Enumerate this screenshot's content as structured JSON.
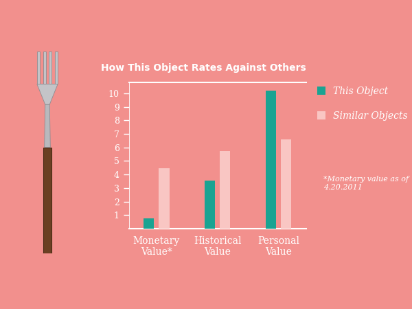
{
  "chart_data": {
    "type": "bar",
    "title": "How This Object Rates Against Others",
    "categories": [
      "Monetary Value*",
      "Historical Value",
      "Personal Value"
    ],
    "series": [
      {
        "name": "This Object",
        "color": "#1aa392",
        "values": [
          0.75,
          3.55,
          10.2
        ]
      },
      {
        "name": "Similar Objects",
        "color": "#f9c6c3",
        "values": [
          4.45,
          5.75,
          6.6
        ]
      }
    ],
    "ylim": [
      0,
      10.8
    ],
    "yticks": [
      1,
      2,
      3,
      4,
      5,
      6,
      7,
      8,
      9,
      10
    ],
    "grid": false,
    "legend": "upper left",
    "annotations": [
      "*Monetary value as of 4.20.2011"
    ]
  }
}
